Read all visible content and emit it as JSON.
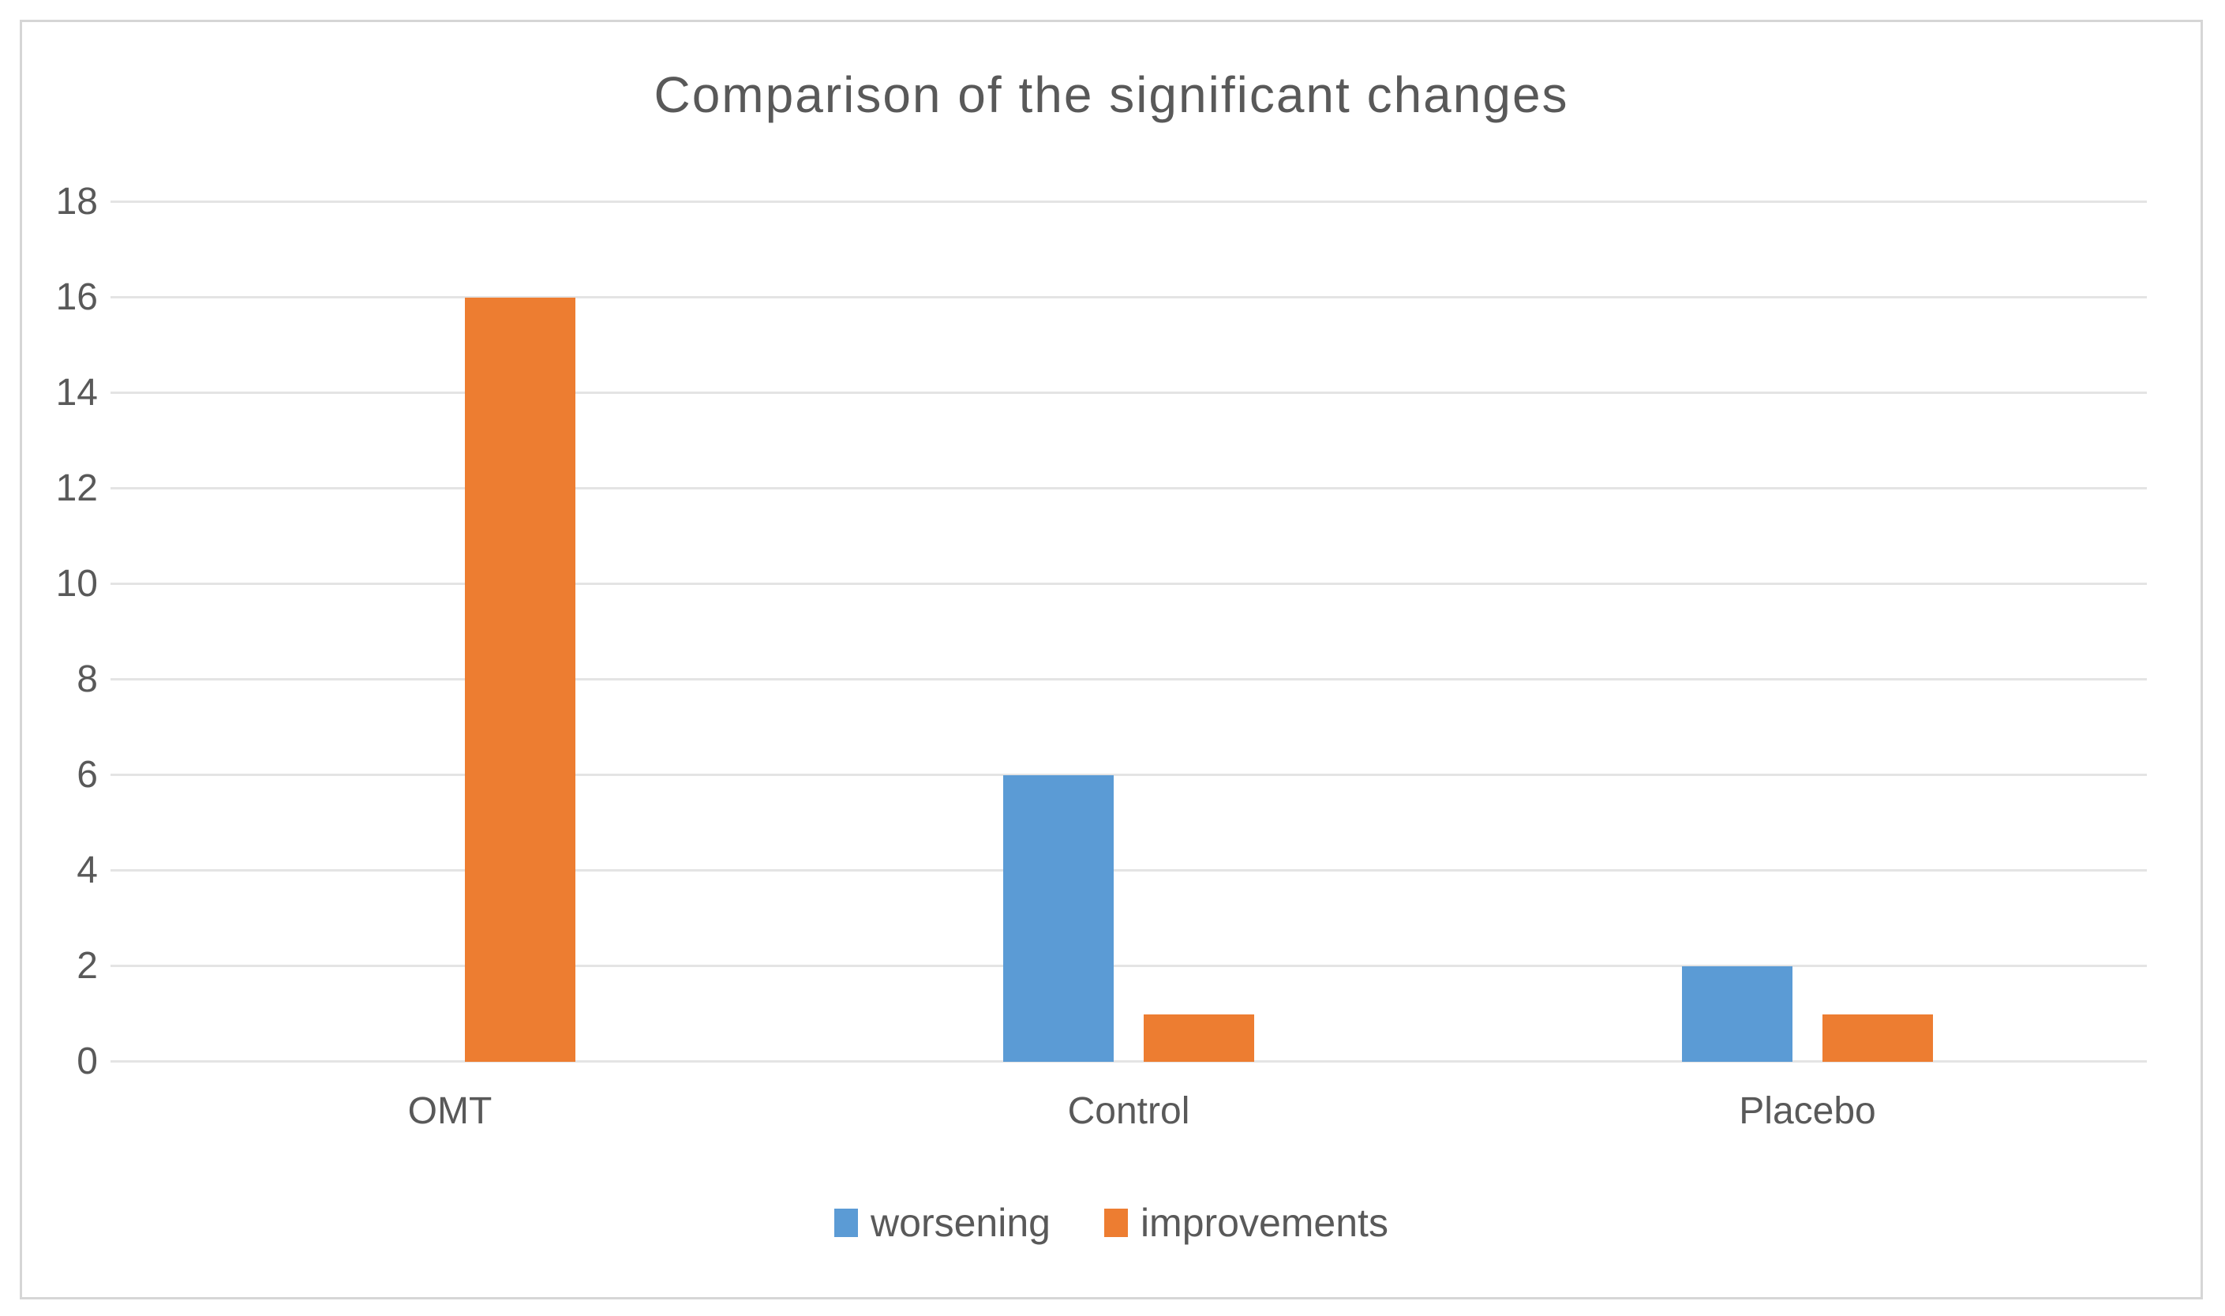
{
  "figure": {
    "background": "#ffffff",
    "border_color": "#d6d6d6"
  },
  "chart_data": {
    "type": "bar",
    "title": "Comparison of the significant changes",
    "categories": [
      "OMT",
      "Control",
      "Placebo"
    ],
    "series": [
      {
        "name": "worsening",
        "color": "#5B9BD5",
        "values": [
          0,
          6,
          2
        ]
      },
      {
        "name": "improvements",
        "color": "#ED7D31",
        "values": [
          16,
          1,
          1
        ]
      }
    ],
    "xlabel": "",
    "ylabel": "",
    "ylim": [
      0,
      18
    ],
    "yticks": [
      0,
      2,
      4,
      6,
      8,
      10,
      12,
      14,
      16,
      18
    ],
    "grid": true,
    "gridline_color": "#e4e4e4",
    "text_color": "#595959",
    "legend_position": "bottom"
  }
}
